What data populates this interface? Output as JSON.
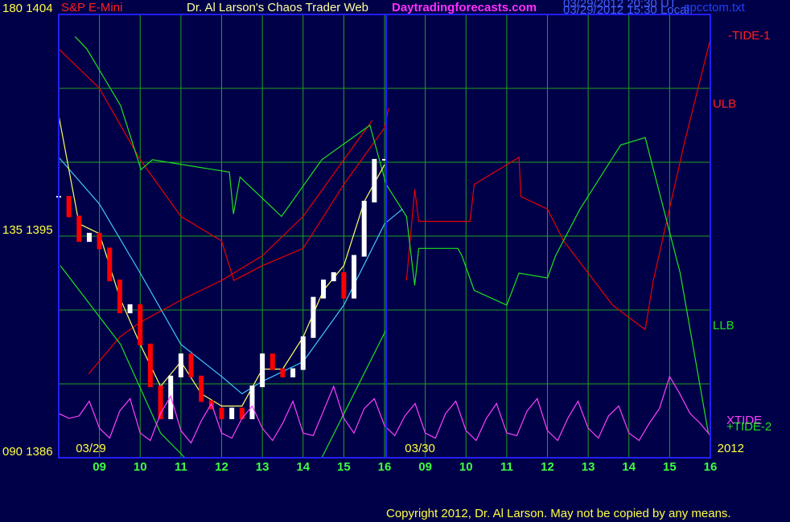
{
  "chart_data": {
    "type": "line",
    "subtitle": "S&P E-Mini",
    "title": "Dr. Al Larson's Chaos Trader Web",
    "site": "Daytradingforecasts.com",
    "timestamps": [
      "03/29/2012 20:30 UT",
      "03/29/2012 15:30 Local"
    ],
    "file": "spcctom.txt",
    "copyright": "Copyright 2012, Dr. Al Larson. May not be copied by any means.",
    "xlim": [
      8,
      24
    ],
    "xticks": [
      {
        "value": 9,
        "label": "09"
      },
      10,
      11,
      12,
      13,
      14,
      15,
      16,
      {
        "value": 17,
        "label": "09"
      },
      {
        "value": 18,
        "label": "10"
      },
      {
        "value": 19,
        "label": "11"
      },
      {
        "value": 20,
        "label": "12"
      },
      {
        "value": 21,
        "label": "13"
      },
      {
        "value": 22,
        "label": "14"
      },
      {
        "value": 23,
        "label": "15"
      },
      {
        "value": 24,
        "label": "16"
      }
    ],
    "date_labels": [
      {
        "value": 8.79,
        "label": "03/29"
      },
      {
        "value": 16.87,
        "label": "03/30"
      },
      {
        "value": 24.5,
        "label": "2012"
      }
    ],
    "ylim": [
      1386,
      1404
    ],
    "yticks": [
      {
        "value": 1386,
        "label": "090 1386"
      },
      {
        "value": 1395,
        "label": "135 1395"
      },
      {
        "value": 1404,
        "label": "180 1404"
      }
    ],
    "ygrid": [
      1389,
      1392,
      1398,
      1401
    ],
    "grid": true,
    "annotations": [
      "-TIDE-1",
      "+TIDE-2"
    ],
    "series": [
      {
        "name": "ULB",
        "color": "#e80000",
        "x": [
          8,
          9,
          10,
          11,
          12,
          12.3,
          13,
          14,
          15,
          16,
          16.1,
          16.3,
          16.54,
          16.74,
          16.84,
          18.1,
          18.2,
          19.3,
          19.35,
          20,
          20.4,
          21.6,
          22.4,
          22.6,
          23.35,
          24
        ],
        "values": [
          1402.6,
          1401.0,
          1398.1,
          1395.8,
          1394.8,
          1393.2,
          1393.8,
          1394.5,
          1397.1,
          1399.4,
          1400.2,
          null,
          1393.2,
          1396.9,
          1395.6,
          1395.6,
          1397.1,
          1398.2,
          1396.6,
          1396.1,
          1394.8,
          1392.2,
          1391.2,
          1393.2,
          1398.7,
          1403.0
        ]
      },
      {
        "color": "#e80000",
        "x": [
          8.73,
          9.5,
          10,
          11,
          12,
          13,
          14,
          15,
          15.7
        ],
        "values": [
          1389.4,
          1390.9,
          1391.5,
          1392.4,
          1393.2,
          1394.2,
          1395.8,
          1398.1,
          1399.7
        ]
      },
      {
        "name": "LLB",
        "color": "#20e020",
        "x": [
          8.4,
          8.69,
          9.52,
          10.02,
          10.3,
          12.19,
          12.29,
          12.45,
          13.47,
          14.46,
          15.64,
          16.04,
          16.54,
          16.74,
          16.84,
          17.8,
          17.9,
          18.2,
          19.0,
          19.3,
          20.0,
          20.2,
          20.8,
          21.8,
          22.4,
          23.26,
          23.95
        ],
        "values": [
          1403.1,
          1402.6,
          1400.3,
          1397.7,
          1398.1,
          1397.6,
          1395.9,
          1397.4,
          1395.8,
          1398.1,
          1399.5,
          1397.1,
          1395.8,
          1393.0,
          1394.5,
          1394.5,
          1394.2,
          1392.8,
          1392.2,
          1393.5,
          1393.3,
          1394.2,
          1396.1,
          1398.7,
          1399.0,
          1393.5,
          1387.0
        ]
      },
      {
        "color": "#20e020",
        "x": [
          8.04,
          9.52,
          10.5,
          11.1,
          12.8,
          14.46,
          16.04
        ],
        "values": [
          1393.8,
          1390.6,
          1387.0,
          1386.0,
          null,
          1386.0,
          1391.2
        ]
      },
      {
        "color": "#40c8ff",
        "x": [
          8,
          9,
          10,
          11,
          12,
          12.5,
          13,
          14,
          15,
          16,
          16.44
        ],
        "values": [
          1398.2,
          1396.3,
          1393.5,
          1390.6,
          1389.3,
          1388.6,
          1389.1,
          1389.9,
          1392.2,
          1395.5,
          1396.1
        ]
      },
      {
        "color": "#ffff60",
        "x": [
          8,
          8.5,
          9,
          9.5,
          10,
          10.5,
          11,
          11.5,
          12,
          12.5,
          13,
          13.5,
          14,
          14.5,
          15,
          15.5,
          16
        ],
        "values": [
          1399.9,
          1395.5,
          1395.1,
          1392.5,
          1390.6,
          1388.9,
          1389.9,
          1388.6,
          1388.1,
          1388.1,
          1389.6,
          1389.6,
          1390.9,
          1392.8,
          1393.8,
          1396.4,
          1397.9
        ]
      },
      {
        "kind": "bars",
        "color": "#ffffff",
        "down_color": "#ff0000",
        "x": [
          8,
          8.25,
          8.5,
          8.75,
          9,
          9.25,
          9.5,
          9.75,
          10,
          10.25,
          10.5,
          10.75,
          11,
          11.25,
          11.5,
          11.75,
          12,
          12.25,
          12.5,
          12.75,
          13,
          13.25,
          13.5,
          13.75,
          14,
          14.25,
          14.5,
          14.75,
          15,
          15.25,
          15.5,
          15.75,
          16
        ],
        "values": [
          1396.6,
          1395.8,
          1394.8,
          1395.1,
          1394.5,
          1393.2,
          1391.9,
          1392.2,
          1390.6,
          1388.9,
          1387.6,
          1389.3,
          1390.2,
          1389.3,
          1388.3,
          1388.0,
          1387.6,
          1388.0,
          1387.6,
          1388.9,
          1390.2,
          1389.6,
          1389.3,
          1389.6,
          1390.9,
          1392.5,
          1393.2,
          1393.5,
          1392.5,
          1394.2,
          1396.4,
          1398.1,
          1398.1
        ]
      },
      {
        "name": "XTIDE",
        "color": "#ff40ff",
        "x": [
          8,
          8.25,
          8.5,
          8.75,
          9,
          9.25,
          9.5,
          9.75,
          10,
          10.25,
          10.5,
          10.75,
          11,
          11.25,
          11.5,
          11.75,
          12,
          12.25,
          12.5,
          12.75,
          13,
          13.25,
          13.5,
          13.75,
          14,
          14.25,
          14.5,
          14.75,
          15,
          15.25,
          15.5,
          15.75,
          16,
          16.25,
          16.5,
          16.75,
          17,
          17.25,
          17.5,
          17.75,
          18,
          18.25,
          18.5,
          18.75,
          19,
          19.25,
          19.5,
          19.75,
          20,
          20.25,
          20.5,
          20.75,
          21,
          21.25,
          21.5,
          21.75,
          22,
          22.25,
          22.5,
          22.75,
          23,
          23.25,
          23.5,
          23.75,
          24
        ],
        "values": [
          1387.8,
          1387.6,
          1387.7,
          1388.3,
          1387.2,
          1386.8,
          1387.9,
          1388.4,
          1387.0,
          1386.7,
          1387.8,
          1388.5,
          1387.1,
          1386.6,
          1387.5,
          1388.2,
          1387.0,
          1386.8,
          1387.6,
          1388.1,
          1387.2,
          1386.7,
          1387.4,
          1388.3,
          1387.0,
          1386.9,
          1387.9,
          1388.9,
          1387.6,
          1387.0,
          1388.0,
          1388.4,
          1387.3,
          1386.9,
          1387.7,
          1388.2,
          1387.0,
          1386.8,
          1387.8,
          1388.3,
          1387.1,
          1386.7,
          1387.6,
          1388.2,
          1387.0,
          1386.9,
          1387.9,
          1388.4,
          1387.1,
          1386.7,
          1387.6,
          1388.3,
          1387.2,
          1386.8,
          1387.7,
          1388.1,
          1387.0,
          1386.7,
          1387.4,
          1388.0,
          1389.3,
          1388.6,
          1387.8,
          1387.4,
          1386.9
        ]
      }
    ]
  }
}
